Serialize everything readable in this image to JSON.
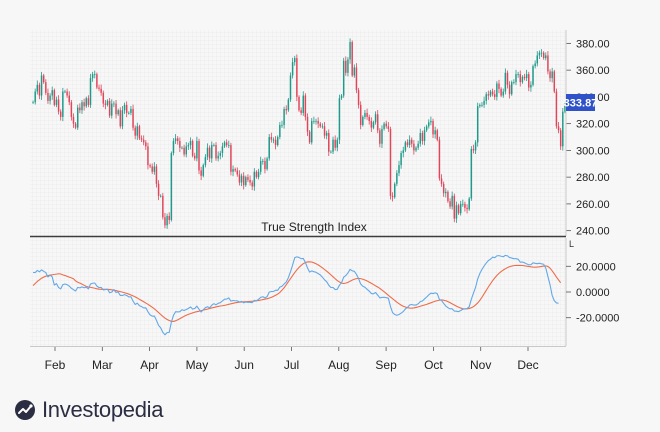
{
  "chart_data": [
    {
      "type": "candlestick",
      "title": "",
      "ylim": [
        236,
        390
      ],
      "y_ticks": [
        "380.00",
        "360.00",
        "340.00",
        "320.00",
        "300.00",
        "280.00",
        "260.00",
        "240.00"
      ],
      "last_price": 333.87,
      "last_price_label": "333.87",
      "colors": {
        "up": "#1f9a8a",
        "down": "#e0455a",
        "price_tag": "#2f52c9"
      },
      "months": [
        "Feb",
        "Mar",
        "Apr",
        "May",
        "Jun",
        "Jul",
        "Aug",
        "Sep",
        "Oct",
        "Nov",
        "Dec"
      ],
      "closes": [
        336,
        344,
        349,
        341,
        356,
        351,
        343,
        337,
        341,
        345,
        334,
        338,
        329,
        325,
        344,
        344,
        341,
        336,
        325,
        320,
        317,
        332,
        330,
        336,
        333,
        339,
        334,
        354,
        357,
        357,
        347,
        346,
        343,
        335,
        334,
        337,
        326,
        335,
        335,
        327,
        330,
        318,
        330,
        334,
        328,
        328,
        331,
        317,
        311,
        318,
        309,
        308,
        306,
        303,
        289,
        288,
        284,
        288,
        275,
        266,
        266,
        250,
        244,
        251,
        248,
        298,
        307,
        309,
        307,
        302,
        302,
        297,
        303,
        304,
        307,
        296,
        294,
        307,
        285,
        281,
        289,
        295,
        302,
        294,
        304,
        304,
        294,
        296,
        298,
        303,
        306,
        304,
        304,
        284,
        286,
        285,
        282,
        276,
        281,
        274,
        280,
        278,
        276,
        273,
        284,
        280,
        284,
        292,
        292,
        286,
        294,
        310,
        308,
        308,
        304,
        310,
        319,
        319,
        331,
        330,
        338,
        356,
        366,
        369,
        340,
        330,
        328,
        341,
        325,
        314,
        306,
        322,
        322,
        322,
        320,
        318,
        318,
        311,
        313,
        299,
        299,
        308,
        302,
        308,
        339,
        341,
        367,
        358,
        368,
        381,
        356,
        362,
        345,
        334,
        319,
        325,
        328,
        325,
        322,
        317,
        321,
        327,
        315,
        305,
        316,
        320,
        318,
        316,
        266,
        265,
        275,
        283,
        289,
        298,
        300,
        306,
        304,
        308,
        305,
        300,
        302,
        305,
        313,
        307,
        315,
        318,
        321,
        322,
        312,
        315,
        308,
        279,
        275,
        268,
        269,
        262,
        258,
        266,
        249,
        259,
        253,
        260,
        260,
        257,
        256,
        264,
        301,
        300,
        306,
        333,
        334,
        334,
        337,
        342,
        341,
        344,
        342,
        340,
        350,
        346,
        341,
        344,
        358,
        349,
        342,
        351,
        351,
        357,
        357,
        351,
        355,
        354,
        357,
        347,
        349,
        363,
        365,
        371,
        373,
        373,
        369,
        371,
        359,
        354,
        359,
        344,
        318,
        315,
        303,
        329,
        334
      ],
      "tsi": {
        "title": "True Strength Index",
        "ylim": [
          -42,
          42
        ],
        "y_ticks": [
          "20.0000",
          "0.0000",
          "-20.0000"
        ],
        "line_colors": {
          "tsi": "#63a8e8",
          "signal": "#ef6c4a"
        },
        "tsi_line": [
          15.2,
          15.1,
          16.8,
          15.7,
          17.2,
          16.1,
          15.1,
          11.7,
          13.1,
          11.8,
          5.4,
          6.5,
          3.5,
          2.4,
          5.7,
          6.2,
          5.7,
          4.6,
          2.9,
          1.8,
          0.8,
          3.6,
          3.2,
          4.0,
          3.3,
          3.8,
          2.4,
          6.2,
          6.8,
          7.0,
          4.6,
          3.4,
          3.6,
          1.6,
          1.9,
          2.1,
          -0.6,
          -0.1,
          1.9,
          -0.4,
          -0.0,
          -2.7,
          -2.7,
          -2.0,
          -2.7,
          -3.8,
          -3.7,
          -7.1,
          -9.7,
          -8.7,
          -10.7,
          -11.3,
          -12.4,
          -12.3,
          -15.4,
          -17.8,
          -18.8,
          -18.7,
          -22.0,
          -26.0,
          -27.9,
          -31.4,
          -33.3,
          -31.6,
          -31.4,
          -23.4,
          -18.2,
          -15.3,
          -15.5,
          -15.3,
          -13.8,
          -14.4,
          -13.6,
          -12.8,
          -11.6,
          -13.3,
          -12.8,
          -11.0,
          -13.4,
          -15.6,
          -13.8,
          -12.2,
          -11.5,
          -12.3,
          -10.3,
          -9.1,
          -10.0,
          -8.8,
          -8.3,
          -7.0,
          -5.6,
          -5.5,
          -4.6,
          -7.1,
          -6.6,
          -6.8,
          -6.9,
          -7.8,
          -7.3,
          -8.4,
          -7.8,
          -8.0,
          -8.0,
          -8.3,
          -6.4,
          -6.8,
          -5.7,
          -4.2,
          -3.7,
          -4.6,
          -3.6,
          -0.1,
          0.4,
          0.4,
          1.4,
          1.3,
          3.8,
          4.5,
          6.2,
          7.8,
          11.1,
          15.7,
          21.0,
          26.7,
          27.3,
          26.9,
          25.9,
          26.1,
          23.0,
          18.7,
          15.5,
          16.4,
          15.8,
          15.3,
          14.3,
          13.3,
          11.5,
          9.5,
          8.0,
          5.3,
          3.5,
          3.5,
          1.9,
          2.1,
          5.3,
          7.2,
          11.5,
          12.8,
          14.8,
          17.6,
          16.5,
          16.1,
          13.8,
          10.4,
          6.2,
          4.5,
          3.7,
          2.1,
          0.7,
          -1.2,
          -1.4,
          -0.4,
          -2.4,
          -4.6,
          -4.2,
          -4.1,
          -4.4,
          -4.8,
          -11.3,
          -16.1,
          -17.5,
          -18.1,
          -17.5,
          -16.5,
          -15.2,
          -13.2,
          -12.0,
          -10.1,
          -9.7,
          -10.2,
          -10.2,
          -9.2,
          -7.5,
          -7.0,
          -5.4,
          -3.9,
          -2.2,
          -0.9,
          -1.2,
          -0.7,
          -1.3,
          -5.8,
          -6.6,
          -8.9,
          -10.9,
          -12.2,
          -13.1,
          -13.1,
          -14.8,
          -14.9,
          -15.3,
          -14.4,
          -13.4,
          -13.2,
          -12.9,
          -11.5,
          -5.7,
          -0.9,
          3.6,
          10.2,
          14.4,
          17.6,
          20.2,
          22.5,
          24.4,
          25.5,
          27.1,
          26.7,
          28.1,
          28.3,
          27.8,
          27.4,
          28.5,
          28.1,
          26.8,
          26.4,
          25.9,
          25.9,
          25.5,
          23.2,
          23.3,
          22.7,
          21.9,
          21.2,
          21.2,
          22.7,
          22.3,
          22.0,
          22.4,
          21.9,
          21.6,
          18.6,
          12.0,
          5.6,
          -2.7,
          -6.8,
          -8.5,
          -8.7
        ],
        "signal_line": [
          5.0,
          6.6,
          8.2,
          9.5,
          10.7,
          11.6,
          12.3,
          12.7,
          13.2,
          13.4,
          13.7,
          13.9,
          14.2,
          14.0,
          13.3,
          12.8,
          12.2,
          11.6,
          11.0,
          10.3,
          8.6,
          7.6,
          6.9,
          6.1,
          5.2,
          4.4,
          3.9,
          3.6,
          3.3,
          2.9,
          2.5,
          2.2,
          2.1,
          2.1,
          2.1,
          2.1,
          1.9,
          1.7,
          1.4,
          1.1,
          0.7,
          0.3,
          -0.1,
          -0.6,
          -1.1,
          -1.6,
          -2.3,
          -3.0,
          -3.8,
          -4.7,
          -5.7,
          -6.6,
          -7.6,
          -8.6,
          -9.6,
          -10.7,
          -11.8,
          -13.1,
          -14.5,
          -16.0,
          -17.5,
          -19.0,
          -20.3,
          -21.4,
          -22.2,
          -22.8,
          -22.9,
          -22.4,
          -21.7,
          -20.7,
          -19.8,
          -18.9,
          -18.1,
          -17.4,
          -16.8,
          -16.2,
          -15.7,
          -15.3,
          -14.9,
          -14.5,
          -14.1,
          -13.7,
          -13.3,
          -12.8,
          -12.4,
          -12.0,
          -11.6,
          -11.2,
          -10.9,
          -10.7,
          -10.4,
          -10.0,
          -9.6,
          -9.2,
          -8.8,
          -8.4,
          -8.1,
          -7.9,
          -7.8,
          -7.6,
          -7.5,
          -7.4,
          -7.3,
          -7.2,
          -7.1,
          -6.9,
          -6.6,
          -6.3,
          -5.9,
          -5.6,
          -5.2,
          -4.8,
          -4.2,
          -3.4,
          -2.5,
          -1.6,
          -0.3,
          1.4,
          3.3,
          5.6,
          8.0,
          10.4,
          12.8,
          15.1,
          17.2,
          19.1,
          20.7,
          22.0,
          22.9,
          23.4,
          23.5,
          23.3,
          22.7,
          22.0,
          21.1,
          20.0,
          18.8,
          17.5,
          16.2,
          14.8,
          13.3,
          11.8,
          10.3,
          8.9,
          7.8,
          6.9,
          6.6,
          6.9,
          7.5,
          8.4,
          9.2,
          9.9,
          10.4,
          10.6,
          10.4,
          9.9,
          9.3,
          8.6,
          7.7,
          6.8,
          5.8,
          4.8,
          3.9,
          2.8,
          1.5,
          0.2,
          -1.1,
          -2.6,
          -3.9,
          -5.2,
          -6.6,
          -7.9,
          -9.1,
          -10.2,
          -11.1,
          -11.7,
          -12.2,
          -12.5,
          -12.6,
          -12.4,
          -12.0,
          -11.6,
          -11.1,
          -10.6,
          -10.1,
          -9.6,
          -9.0,
          -8.4,
          -7.8,
          -7.2,
          -6.7,
          -6.4,
          -6.2,
          -6.4,
          -6.8,
          -7.5,
          -8.3,
          -9.2,
          -10.1,
          -11.0,
          -11.8,
          -12.5,
          -13.0,
          -13.2,
          -13.1,
          -12.8,
          -12.3,
          -11.4,
          -10.1,
          -8.5,
          -6.5,
          -4.1,
          -1.4,
          1.2,
          3.9,
          6.4,
          8.8,
          10.9,
          12.8,
          14.5,
          15.9,
          17.1,
          18.1,
          19.0,
          19.7,
          20.2,
          20.5,
          20.7,
          20.7,
          20.7,
          20.6,
          20.4,
          20.1,
          19.9,
          19.6,
          19.4,
          19.3,
          19.4,
          19.6,
          19.9,
          20.2,
          20.3,
          19.9,
          18.5,
          16.5,
          14.1,
          11.6,
          9.4,
          7.2
        ],
        "y_axis_marker": "L"
      },
      "brand": "Investopedia"
    }
  ]
}
